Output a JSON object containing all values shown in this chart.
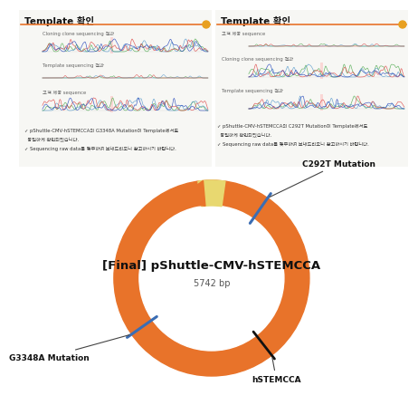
{
  "title": "[Final] pShuttle-CMV-hSTEMCCA",
  "bp": "5742 bp",
  "bg_color": "#FFFFFF",
  "title_fontsize": 9.5,
  "bp_fontsize": 7,
  "panel_title_left": "Template 확인",
  "panel_title_right": "Template 확인",
  "left_bullet1": "✓ pShuttle-CMV-hSTEMCCA의 G3348A Mutation이 Template에서도",
  "left_bullet2": "  동일하게 확인되었습니다.",
  "left_bullet3": "✓ Sequencing raw data를 쳊부하여 보내드리오니 참고하시기 바랍니다.",
  "right_bullet1": "✓ pShuttle-CMV-hSTEMCCA의 C292T Mutation이 Template에서도",
  "right_bullet2": "  동일하게 확인되었습니다.",
  "right_bullet3": "✓ Sequencing raw data를 쳊부하여 보내드리오니 참고하시기 바랍니다.",
  "label_c292t": "C292T Mutation",
  "label_g3348a": "G3348A Mutation",
  "label_hstemcca": "hSTEMCCA",
  "ring_color": "#E8732A",
  "blue_color": "#3B6DB3",
  "yellow_color": "#E8D870",
  "divider_color": "#E8732A",
  "orange_dot_color": "#E8A020",
  "left_chrom_label1": "Cloning clone sequencing 결과",
  "left_chrom_label2": "Template sequencing 결과",
  "left_chrom_label3": "고객 제공 sequence",
  "right_chrom_label1": "고객 제공 sequence",
  "right_chrom_label2": "Cloning clone sequencing 결과",
  "right_chrom_label3": "Template sequencing 결과"
}
